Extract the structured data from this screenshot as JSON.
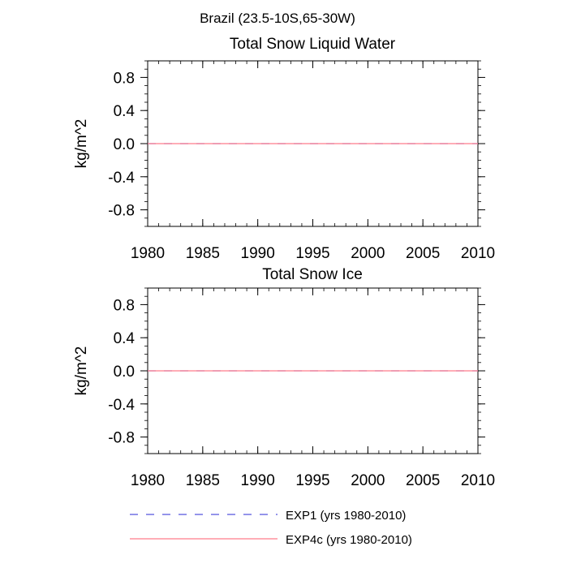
{
  "figure": {
    "main_title": "Brazil (23.5-10S,65-30W)"
  },
  "chart_data": [
    {
      "type": "line",
      "title": "Total Snow Liquid Water",
      "xlabel": "",
      "ylabel": "kg/m^2",
      "xlim": [
        1980,
        2010
      ],
      "ylim": [
        -1,
        1
      ],
      "x_ticks": [
        1980,
        1985,
        1990,
        1995,
        2000,
        2005,
        2010
      ],
      "x_tick_labels": [
        "1980",
        "1985",
        "1990",
        "1995",
        "2000",
        "2005",
        "2010"
      ],
      "y_ticks": [
        -0.8,
        -0.4,
        0.0,
        0.4,
        0.8
      ],
      "y_tick_labels": [
        "-0.8",
        "-0.4",
        "0.0",
        "0.4",
        "0.8"
      ],
      "x": [
        1980,
        2010
      ],
      "series": [
        {
          "name": "EXP1 (yrs 1980-2010)",
          "values": [
            0,
            0
          ],
          "color": "#5555dd",
          "dash": "dashed"
        },
        {
          "name": "EXP4c (yrs 1980-2010)",
          "values": [
            0,
            0
          ],
          "color": "#ff7c8a",
          "dash": "solid"
        }
      ]
    },
    {
      "type": "line",
      "title": "Total Snow Ice",
      "xlabel": "",
      "ylabel": "kg/m^2",
      "xlim": [
        1980,
        2010
      ],
      "ylim": [
        -1,
        1
      ],
      "x_ticks": [
        1980,
        1985,
        1990,
        1995,
        2000,
        2005,
        2010
      ],
      "x_tick_labels": [
        "1980",
        "1985",
        "1990",
        "1995",
        "2000",
        "2005",
        "2010"
      ],
      "y_ticks": [
        -0.8,
        -0.4,
        0.0,
        0.4,
        0.8
      ],
      "y_tick_labels": [
        "-0.8",
        "-0.4",
        "0.0",
        "0.4",
        "0.8"
      ],
      "x": [
        1980,
        2010
      ],
      "series": [
        {
          "name": "EXP1 (yrs 1980-2010)",
          "values": [
            0,
            0
          ],
          "color": "#5555dd",
          "dash": "dashed"
        },
        {
          "name": "EXP4c (yrs 1980-2010)",
          "values": [
            0,
            0
          ],
          "color": "#ff7c8a",
          "dash": "solid"
        }
      ]
    }
  ],
  "legend": {
    "entries": [
      {
        "label": "EXP1 (yrs 1980-2010)",
        "color": "#5555dd",
        "dash": "dashed"
      },
      {
        "label": "EXP4c (yrs 1980-2010)",
        "color": "#ff7c8a",
        "dash": "solid"
      }
    ]
  }
}
